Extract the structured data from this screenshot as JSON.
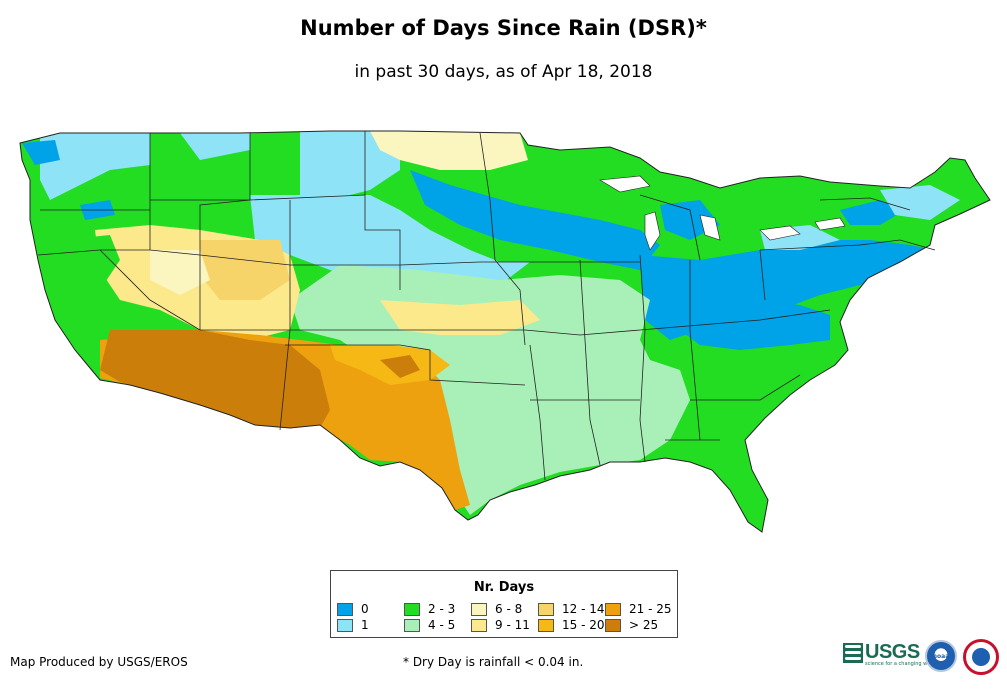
{
  "title": "Number of Days Since Rain (DSR)*",
  "subtitle": "in past 30 days, as of Apr 18, 2018",
  "legend": {
    "title": "Nr. Days",
    "items": [
      {
        "label": "0",
        "color": "#00a2e8"
      },
      {
        "label": "1",
        "color": "#8fe3f7"
      },
      {
        "label": "2 - 3",
        "color": "#22dd22"
      },
      {
        "label": "4 - 5",
        "color": "#a8f0b8"
      },
      {
        "label": "6 - 8",
        "color": "#fbf6bf"
      },
      {
        "label": "9 - 11",
        "color": "#fbe98c"
      },
      {
        "label": "12 - 14",
        "color": "#f6d46a"
      },
      {
        "label": "15 - 20",
        "color": "#f6b814"
      },
      {
        "label": "21 - 25",
        "color": "#eea10e"
      },
      {
        "label": "> 25",
        "color": "#cc7e0a"
      }
    ]
  },
  "footer": {
    "produced_by": "Map Produced by USGS/EROS",
    "note": "* Dry Day is rainfall < 0.04 in."
  },
  "logos": {
    "usgs": "USGS",
    "usgs_tagline": "science for a changing world",
    "noaa": "noaa",
    "nws": "nws-logo"
  }
}
